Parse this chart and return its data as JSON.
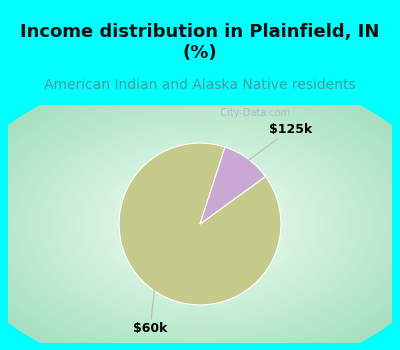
{
  "title": "Income distribution in Plainfield, IN\n(%)",
  "subtitle": "American Indian and Alaska Native residents",
  "title_fontsize": 13,
  "subtitle_fontsize": 10,
  "title_color": "#111111",
  "subtitle_color": "#4a9a9a",
  "title_bg_color": "#00ffff",
  "chart_bg_gradient_inner": "#f5fff5",
  "chart_bg_gradient_outer": "#a8e6c0",
  "slices": [
    {
      "label": "$60k",
      "value": 90,
      "color": "#c5c98a"
    },
    {
      "label": "$125k",
      "value": 10,
      "color": "#c9a8d4"
    }
  ],
  "watermark": "  City-Data.com",
  "label_fontsize": 9,
  "pie_startangle": 72,
  "label_color": "#000000",
  "border_color": "#00ffff",
  "border_width": 8
}
